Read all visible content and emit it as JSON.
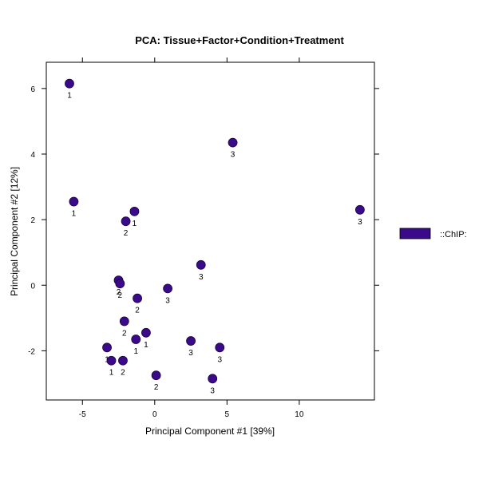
{
  "chart_data": {
    "type": "scatter",
    "title": "PCA: Tissue+Factor+Condition+Treatment",
    "xlabel": "Principal Component #1 [39%]",
    "ylabel": "Principal Component #2 [12%]",
    "xlim": [
      -7.5,
      15.2
    ],
    "ylim": [
      -3.5,
      6.8
    ],
    "xticks": [
      -5,
      0,
      5,
      10
    ],
    "yticks": [
      -2,
      0,
      2,
      4,
      6
    ],
    "grid": false,
    "legend_position": "right",
    "series": [
      {
        "name": "::ChIP:",
        "color": "#3b0a8a",
        "points": [
          {
            "x": -5.9,
            "y": 6.15,
            "label": "1"
          },
          {
            "x": -5.6,
            "y": 2.55,
            "label": "1"
          },
          {
            "x": 5.4,
            "y": 4.35,
            "label": "3"
          },
          {
            "x": 14.2,
            "y": 2.3,
            "label": "3"
          },
          {
            "x": -2.0,
            "y": 1.95,
            "label": "2"
          },
          {
            "x": -1.4,
            "y": 2.25,
            "label": "1"
          },
          {
            "x": 3.2,
            "y": 0.62,
            "label": "3"
          },
          {
            "x": -2.5,
            "y": 0.15,
            "label": "2"
          },
          {
            "x": -2.4,
            "y": 0.05,
            "label": "2"
          },
          {
            "x": 0.9,
            "y": -0.1,
            "label": "3"
          },
          {
            "x": -1.2,
            "y": -0.4,
            "label": "2"
          },
          {
            "x": -2.1,
            "y": -1.1,
            "label": "2"
          },
          {
            "x": -0.6,
            "y": -1.45,
            "label": "1"
          },
          {
            "x": -1.3,
            "y": -1.65,
            "label": "1"
          },
          {
            "x": 2.5,
            "y": -1.7,
            "label": "3"
          },
          {
            "x": -3.3,
            "y": -1.9,
            "label": "1"
          },
          {
            "x": 4.5,
            "y": -1.9,
            "label": "3"
          },
          {
            "x": -3.0,
            "y": -2.3,
            "label": "1"
          },
          {
            "x": -2.2,
            "y": -2.3,
            "label": "2"
          },
          {
            "x": 0.1,
            "y": -2.75,
            "label": "2"
          },
          {
            "x": 4.0,
            "y": -2.85,
            "label": "3"
          }
        ]
      }
    ]
  }
}
